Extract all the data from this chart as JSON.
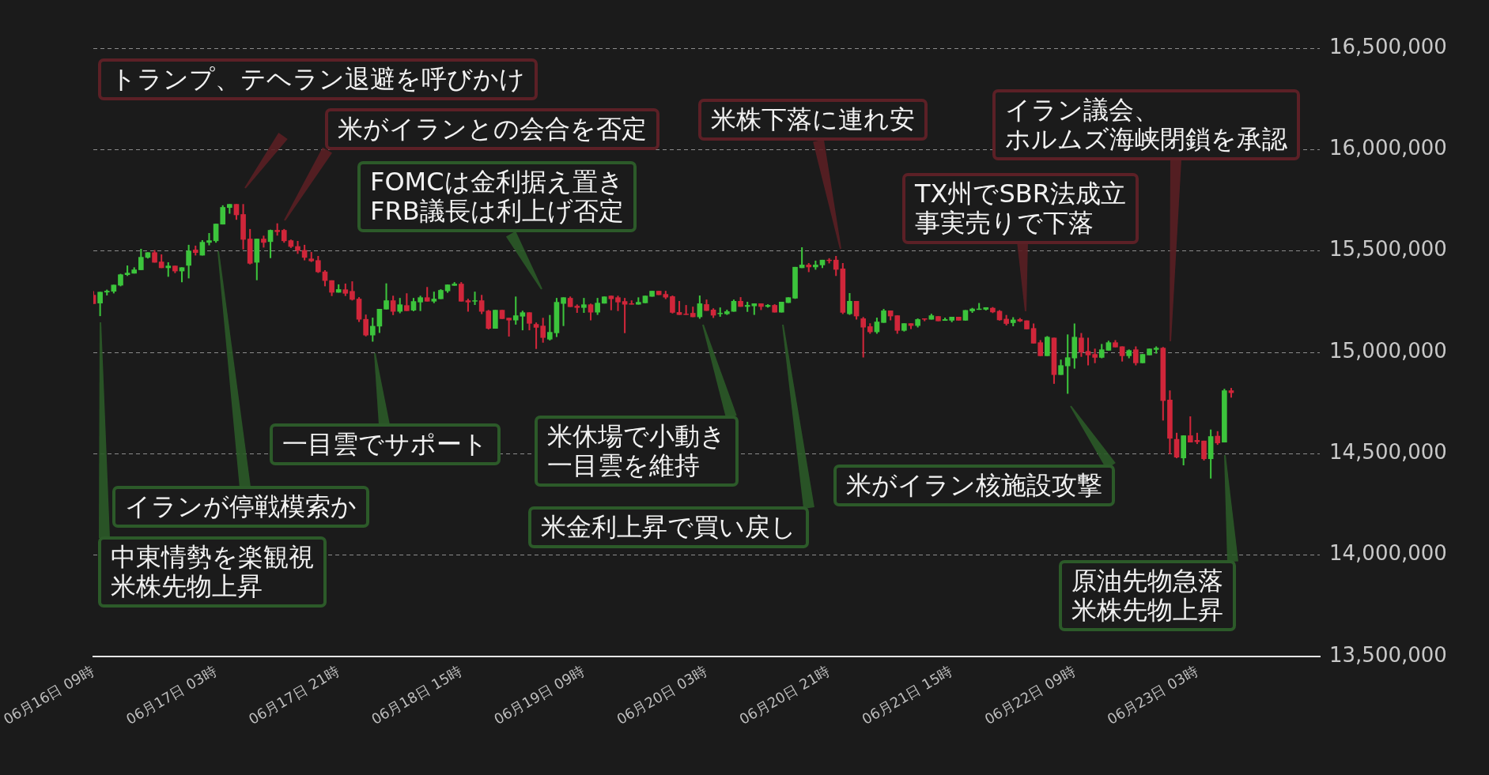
{
  "chart_data": {
    "type": "candlestick",
    "x": [
      "--06-16T09:00",
      "--06-16T10:00",
      "--06-16T11:00",
      "--06-16T12:00",
      "--06-16T13:00",
      "--06-16T14:00",
      "--06-16T15:00",
      "--06-16T16:00",
      "--06-16T17:00",
      "--06-16T18:00",
      "--06-16T19:00",
      "--06-16T20:00",
      "--06-16T21:00",
      "--06-16T22:00",
      "--06-16T23:00",
      "--06-17T00:00",
      "--06-17T01:00",
      "--06-17T02:00",
      "--06-17T03:00",
      "--06-17T04:00",
      "--06-17T05:00",
      "--06-17T06:00",
      "--06-17T07:00",
      "--06-17T08:00",
      "--06-17T09:00",
      "--06-17T10:00",
      "--06-17T11:00",
      "--06-17T12:00",
      "--06-17T13:00",
      "--06-17T14:00",
      "--06-17T15:00",
      "--06-17T16:00",
      "--06-17T17:00",
      "--06-17T18:00",
      "--06-17T19:00",
      "--06-17T20:00",
      "--06-17T21:00",
      "--06-17T22:00",
      "--06-17T23:00",
      "--06-18T00:00",
      "--06-18T01:00",
      "--06-18T02:00",
      "--06-18T03:00",
      "--06-18T04:00",
      "--06-18T05:00",
      "--06-18T06:00",
      "--06-18T07:00",
      "--06-18T08:00",
      "--06-18T09:00",
      "--06-18T10:00",
      "--06-18T11:00",
      "--06-18T12:00",
      "--06-18T13:00",
      "--06-18T14:00",
      "--06-18T15:00",
      "--06-18T16:00",
      "--06-18T17:00",
      "--06-18T18:00",
      "--06-18T19:00",
      "--06-18T20:00",
      "--06-18T21:00",
      "--06-18T22:00",
      "--06-18T23:00",
      "--06-19T00:00",
      "--06-19T01:00",
      "--06-19T02:00",
      "--06-19T03:00",
      "--06-19T04:00",
      "--06-19T05:00",
      "--06-19T06:00",
      "--06-19T07:00",
      "--06-19T08:00",
      "--06-19T09:00",
      "--06-19T10:00",
      "--06-19T11:00",
      "--06-19T12:00",
      "--06-19T13:00",
      "--06-19T14:00",
      "--06-19T15:00",
      "--06-19T16:00",
      "--06-19T17:00",
      "--06-19T18:00",
      "--06-19T19:00",
      "--06-19T20:00",
      "--06-19T21:00",
      "--06-19T22:00",
      "--06-19T23:00",
      "--06-20T00:00",
      "--06-20T01:00",
      "--06-20T02:00",
      "--06-20T03:00",
      "--06-20T04:00",
      "--06-20T05:00",
      "--06-20T06:00",
      "--06-20T07:00",
      "--06-20T08:00",
      "--06-20T09:00",
      "--06-20T10:00",
      "--06-20T11:00",
      "--06-20T12:00",
      "--06-20T13:00",
      "--06-20T14:00",
      "--06-20T15:00",
      "--06-20T16:00",
      "--06-20T17:00",
      "--06-20T18:00",
      "--06-20T19:00",
      "--06-20T20:00",
      "--06-20T21:00",
      "--06-20T22:00",
      "--06-20T23:00",
      "--06-21T00:00",
      "--06-21T01:00",
      "--06-21T02:00",
      "--06-21T03:00",
      "--06-21T04:00",
      "--06-21T05:00",
      "--06-21T06:00",
      "--06-21T07:00",
      "--06-21T08:00",
      "--06-21T09:00",
      "--06-21T10:00",
      "--06-21T11:00",
      "--06-21T12:00",
      "--06-21T13:00",
      "--06-21T14:00",
      "--06-21T15:00",
      "--06-21T16:00",
      "--06-21T17:00",
      "--06-21T18:00",
      "--06-21T19:00",
      "--06-21T20:00",
      "--06-21T21:00",
      "--06-21T22:00",
      "--06-21T23:00",
      "--06-22T00:00",
      "--06-22T01:00",
      "--06-22T02:00",
      "--06-22T03:00",
      "--06-22T04:00",
      "--06-22T05:00",
      "--06-22T06:00",
      "--06-22T07:00",
      "--06-22T08:00",
      "--06-22T09:00",
      "--06-22T10:00",
      "--06-22T11:00",
      "--06-22T12:00",
      "--06-22T13:00",
      "--06-22T14:00",
      "--06-22T15:00",
      "--06-22T16:00",
      "--06-22T17:00",
      "--06-22T18:00",
      "--06-22T19:00",
      "--06-22T20:00",
      "--06-22T21:00",
      "--06-22T22:00",
      "--06-22T23:00",
      "--06-23T00:00",
      "--06-23T01:00",
      "--06-23T02:00",
      "--06-23T03:00",
      "--06-23T04:00",
      "--06-23T05:00",
      "--06-23T06:00",
      "--06-23T07:00",
      "--06-23T08:00"
    ],
    "ohlc": [
      [
        15282000,
        15301000,
        15240000,
        15240000
      ],
      [
        15243000,
        15297000,
        15180000,
        15297000
      ],
      [
        15297000,
        15308000,
        15282000,
        15302000
      ],
      [
        15301000,
        15332000,
        15292000,
        15332000
      ],
      [
        15331000,
        15386000,
        15327000,
        15383000
      ],
      [
        15383000,
        15427000,
        15378000,
        15391000
      ],
      [
        15390000,
        15418000,
        15390000,
        15407000
      ],
      [
        15407000,
        15509000,
        15407000,
        15469000
      ],
      [
        15468000,
        15492000,
        15464000,
        15492000
      ],
      [
        15492000,
        15503000,
        15444000,
        15444000
      ],
      [
        15446000,
        15482000,
        15417000,
        15417000
      ],
      [
        15417000,
        15443000,
        15374000,
        15426000
      ],
      [
        15426000,
        15426000,
        15392000,
        15401000
      ],
      [
        15401000,
        15418000,
        15347000,
        15418000
      ],
      [
        15429000,
        15529000,
        15366000,
        15500000
      ],
      [
        15505000,
        15525000,
        15479000,
        15492000
      ],
      [
        15479000,
        15552000,
        15479000,
        15543000
      ],
      [
        15542000,
        15587000,
        15529000,
        15551000
      ],
      [
        15550000,
        15633000,
        15542000,
        15633000
      ],
      [
        15632000,
        15724000,
        15632000,
        15715000
      ],
      [
        15714000,
        15730000,
        15685000,
        15730000
      ],
      [
        15730000,
        15730000,
        15655000,
        15678000
      ],
      [
        15680000,
        15730000,
        15509000,
        15557000
      ],
      [
        15559000,
        15607000,
        15435000,
        15439000
      ],
      [
        15444000,
        15559000,
        15357000,
        15559000
      ],
      [
        15559000,
        15574000,
        15518000,
        15542000
      ],
      [
        15546000,
        15604000,
        15466000,
        15602000
      ],
      [
        15602000,
        15635000,
        15577000,
        15595000
      ],
      [
        15602000,
        15607000,
        15542000,
        15550000
      ],
      [
        15551000,
        15555000,
        15516000,
        15522000
      ],
      [
        15522000,
        15548000,
        15487000,
        15503000
      ],
      [
        15503000,
        15529000,
        15455000,
        15468000
      ],
      [
        15461000,
        15494000,
        15447000,
        15451000
      ],
      [
        15453000,
        15474000,
        15393000,
        15397000
      ],
      [
        15397000,
        15404000,
        15327000,
        15354000
      ],
      [
        15354000,
        15354000,
        15279000,
        15296000
      ],
      [
        15296000,
        15334000,
        15296000,
        15310000
      ],
      [
        15309000,
        15338000,
        15279000,
        15291000
      ],
      [
        15301000,
        15349000,
        15257000,
        15261000
      ],
      [
        15263000,
        15271000,
        15151000,
        15163000
      ],
      [
        15163000,
        15185000,
        15080000,
        15085000
      ],
      [
        15085000,
        15170000,
        15054000,
        15129000
      ],
      [
        15129000,
        15213000,
        15097000,
        15213000
      ],
      [
        15213000,
        15339000,
        15213000,
        15255000
      ],
      [
        15255000,
        15278000,
        15185000,
        15202000
      ],
      [
        15202000,
        15267000,
        15194000,
        15235000
      ],
      [
        15231000,
        15290000,
        15205000,
        15205000
      ],
      [
        15208000,
        15267000,
        15204000,
        15251000
      ],
      [
        15248000,
        15278000,
        15205000,
        15270000
      ],
      [
        15270000,
        15321000,
        15252000,
        15252000
      ],
      [
        15252000,
        15298000,
        15244000,
        15263000
      ],
      [
        15264000,
        15310000,
        15264000,
        15306000
      ],
      [
        15303000,
        15333000,
        15295000,
        15333000
      ],
      [
        15330000,
        15345000,
        15330000,
        15337000
      ],
      [
        15337000,
        15345000,
        15252000,
        15252000
      ],
      [
        15255000,
        15263000,
        15202000,
        15248000
      ],
      [
        15252000,
        15298000,
        15235000,
        15255000
      ],
      [
        15255000,
        15282000,
        15190000,
        15202000
      ],
      [
        15204000,
        15208000,
        15114000,
        15118000
      ],
      [
        15118000,
        15208000,
        15118000,
        15208000
      ],
      [
        15208000,
        15208000,
        15166000,
        15166000
      ],
      [
        15169000,
        15169000,
        15079000,
        15159000
      ],
      [
        15159000,
        15274000,
        15138000,
        15181000
      ],
      [
        15178000,
        15204000,
        15110000,
        15196000
      ],
      [
        15196000,
        15196000,
        15110000,
        15143000
      ],
      [
        15138000,
        15146000,
        15018000,
        15123000
      ],
      [
        15130000,
        15169000,
        15049000,
        15073000
      ],
      [
        15065000,
        15183000,
        15060000,
        15099000
      ],
      [
        15096000,
        15267000,
        15077000,
        15247000
      ],
      [
        15241000,
        15270000,
        15131000,
        15270000
      ],
      [
        15267000,
        15274000,
        15225000,
        15225000
      ],
      [
        15228000,
        15235000,
        15196000,
        15221000
      ],
      [
        15221000,
        15267000,
        15196000,
        15235000
      ],
      [
        15235000,
        15239000,
        15159000,
        15198000
      ],
      [
        15198000,
        15267000,
        15186000,
        15243000
      ],
      [
        15242000,
        15274000,
        15242000,
        15274000
      ],
      [
        15278000,
        15278000,
        15209000,
        15264000
      ],
      [
        15270000,
        15278000,
        15205000,
        15248000
      ],
      [
        15251000,
        15267000,
        15096000,
        15237000
      ],
      [
        15240000,
        15255000,
        15237000,
        15237000
      ],
      [
        15237000,
        15270000,
        15237000,
        15247000
      ],
      [
        15244000,
        15278000,
        15244000,
        15278000
      ],
      [
        15276000,
        15302000,
        15276000,
        15302000
      ],
      [
        15302000,
        15302000,
        15284000,
        15284000
      ],
      [
        15286000,
        15302000,
        15264000,
        15272000
      ],
      [
        15275000,
        15279000,
        15193000,
        15197000
      ],
      [
        15197000,
        15252000,
        15186000,
        15186000
      ],
      [
        15189000,
        15232000,
        15186000,
        15186000
      ],
      [
        15193000,
        15224000,
        15175000,
        15175000
      ],
      [
        15175000,
        15279000,
        15167000,
        15240000
      ],
      [
        15236000,
        15259000,
        15206000,
        15206000
      ],
      [
        15209000,
        15216000,
        15171000,
        15183000
      ],
      [
        15190000,
        15220000,
        15177000,
        15193000
      ],
      [
        15190000,
        15209000,
        15186000,
        15201000
      ],
      [
        15202000,
        15259000,
        15202000,
        15252000
      ],
      [
        15252000,
        15271000,
        15226000,
        15226000
      ],
      [
        15226000,
        15248000,
        15201000,
        15232000
      ],
      [
        15229000,
        15240000,
        15186000,
        15240000
      ],
      [
        15240000,
        15240000,
        15210000,
        15226000
      ],
      [
        15226000,
        15236000,
        15222000,
        15232000
      ],
      [
        15232000,
        15236000,
        15198000,
        15198000
      ],
      [
        15198000,
        15248000,
        15198000,
        15248000
      ],
      [
        15245000,
        15270000,
        15245000,
        15270000
      ],
      [
        15267000,
        15420000,
        15265000,
        15420000
      ],
      [
        15417000,
        15517000,
        15417000,
        15431000
      ],
      [
        15431000,
        15439000,
        15397000,
        15421000
      ],
      [
        15421000,
        15451000,
        15409000,
        15431000
      ],
      [
        15431000,
        15455000,
        15417000,
        15455000
      ],
      [
        15455000,
        15463000,
        15440000,
        15452000
      ],
      [
        15455000,
        15474000,
        15378000,
        15409000
      ],
      [
        15412000,
        15439000,
        15190000,
        15197000
      ],
      [
        15190000,
        15291000,
        15186000,
        15252000
      ],
      [
        15252000,
        15252000,
        15163000,
        15179000
      ],
      [
        15166000,
        15173000,
        14976000,
        15124000
      ],
      [
        15127000,
        15142000,
        15093000,
        15101000
      ],
      [
        15101000,
        15170000,
        15093000,
        15150000
      ],
      [
        15147000,
        15213000,
        15147000,
        15205000
      ],
      [
        15205000,
        15205000,
        15159000,
        15179000
      ],
      [
        15181000,
        15181000,
        15093000,
        15108000
      ],
      [
        15108000,
        15142000,
        15104000,
        15142000
      ],
      [
        15142000,
        15142000,
        15116000,
        15132000
      ],
      [
        15132000,
        15166000,
        15124000,
        15162000
      ],
      [
        15166000,
        15166000,
        15155000,
        15163000
      ],
      [
        15163000,
        15189000,
        15163000,
        15181000
      ],
      [
        15177000,
        15177000,
        15155000,
        15155000
      ],
      [
        15157000,
        15170000,
        15157000,
        15162000
      ],
      [
        15158000,
        15174000,
        15150000,
        15174000
      ],
      [
        15174000,
        15174000,
        15158000,
        15158000
      ],
      [
        15158000,
        15207000,
        15158000,
        15207000
      ],
      [
        15204000,
        15218000,
        15196000,
        15214000
      ],
      [
        15211000,
        15242000,
        15211000,
        15213000
      ],
      [
        15212000,
        15221000,
        15208000,
        15221000
      ],
      [
        15218000,
        15222000,
        15195000,
        15199000
      ],
      [
        15203000,
        15207000,
        15158000,
        15160000
      ],
      [
        15164000,
        15183000,
        15134000,
        15142000
      ],
      [
        15146000,
        15172000,
        15130000,
        15160000
      ],
      [
        15162000,
        15168000,
        15151000,
        15154000
      ],
      [
        15156000,
        15156000,
        15115000,
        15115000
      ],
      [
        15118000,
        15141000,
        15045000,
        15045000
      ],
      [
        15048000,
        15059000,
        14983000,
        14983000
      ],
      [
        14983000,
        15079000,
        14983000,
        15075000
      ],
      [
        15071000,
        15071000,
        14846000,
        14890000
      ],
      [
        14890000,
        14963000,
        14890000,
        14935000
      ],
      [
        14933000,
        15087000,
        14797000,
        14974000
      ],
      [
        14972000,
        15141000,
        14921000,
        15075000
      ],
      [
        15071000,
        15094000,
        14979000,
        15001000
      ],
      [
        15005000,
        15071000,
        14937000,
        14987000
      ],
      [
        14990000,
        15017000,
        14948000,
        14975000
      ],
      [
        14975000,
        15040000,
        14972000,
        15013000
      ],
      [
        15010000,
        15056000,
        15010000,
        15048000
      ],
      [
        15048000,
        15059000,
        15026000,
        15026000
      ],
      [
        15028000,
        15028000,
        14956000,
        14983000
      ],
      [
        14983000,
        15013000,
        14972000,
        15009000
      ],
      [
        15013000,
        15028000,
        14937000,
        14948000
      ],
      [
        14948000,
        14990000,
        14948000,
        14990000
      ],
      [
        14987000,
        15017000,
        14987000,
        15017000
      ],
      [
        15014000,
        15028000,
        14995000,
        15021000
      ],
      [
        15021000,
        15025000,
        14665000,
        14762000
      ],
      [
        14765000,
        14811000,
        14499000,
        14576000
      ],
      [
        14571000,
        14602000,
        14479000,
        14483000
      ],
      [
        14479000,
        14589000,
        14444000,
        14589000
      ],
      [
        14589000,
        14683000,
        14557000,
        14557000
      ],
      [
        14566000,
        14602000,
        14549000,
        14559000
      ],
      [
        14563000,
        14563000,
        14468000,
        14475000
      ],
      [
        14475000,
        14618000,
        14379000,
        14585000
      ],
      [
        14587000,
        14610000,
        14545000,
        14553000
      ],
      [
        14557000,
        14819000,
        14557000,
        14811000
      ],
      [
        14811000,
        14823000,
        14778000,
        14801000
      ]
    ],
    "xlim": [
      "--06-16T09:00",
      "--06-23T21:00"
    ],
    "xticks": [
      {
        "value": "--06-16T09:00",
        "label": "06月16日 09時"
      },
      {
        "value": "--06-17T03:00",
        "label": "06月17日 03時"
      },
      {
        "value": "--06-17T21:00",
        "label": "06月17日 21時"
      },
      {
        "value": "--06-18T15:00",
        "label": "06月18日 15時"
      },
      {
        "value": "--06-19T09:00",
        "label": "06月19日 09時"
      },
      {
        "value": "--06-20T03:00",
        "label": "06月20日 03時"
      },
      {
        "value": "--06-20T21:00",
        "label": "06月20日 21時"
      },
      {
        "value": "--06-21T15:00",
        "label": "06月21日 15時"
      },
      {
        "value": "--06-22T09:00",
        "label": "06月22日 09時"
      },
      {
        "value": "--06-23T03:00",
        "label": "06月23日 03時"
      }
    ],
    "ylim": [
      13500000,
      16500000
    ],
    "yticks": [
      {
        "value": 13500000,
        "label": "13,500,000"
      },
      {
        "value": 14000000,
        "label": "14,000,000"
      },
      {
        "value": 14500000,
        "label": "14,500,000"
      },
      {
        "value": 15000000,
        "label": "15,000,000"
      },
      {
        "value": 15500000,
        "label": "15,500,000"
      },
      {
        "value": 16000000,
        "label": "16,000,000"
      },
      {
        "value": 16500000,
        "label": "16,500,000"
      }
    ],
    "grid": "y",
    "annotations": [
      "トランプ、テヘラン退避を呼びかけ",
      "米がイランとの会合を否定",
      "FOMCは金利据え置きFRB議長は利上げ否定",
      "米株下落に連れ安",
      "TX州でSBR法成立事実売りで下落",
      "イラン議会、ホルムズ海峡閉鎖を承認",
      "一目雲でサポート",
      "イランが停戦模索か",
      "中東情勢を楽観視米株先物上昇",
      "米休場で小動き一目雲を維持",
      "米金利上昇で買い戻し",
      "米がイラン核施設攻撃",
      "原油先物急落米株先物上昇"
    ]
  }
}
